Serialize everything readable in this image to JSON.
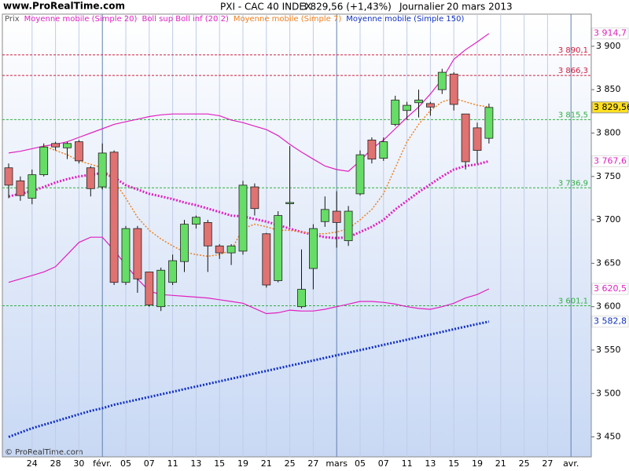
{
  "chart_data": {
    "type": "candlestick",
    "site": "www.ProRealTime.com",
    "copyright": "© ProRealTime.com",
    "title": "PXI - CAC 40 INDEX",
    "price_change": "3 829,56 (+1,43%)",
    "period": "Journalier",
    "date": "20 mars 2013",
    "price_name": "Prix",
    "categories": [
      null,
      null,
      "24",
      null,
      "28",
      null,
      "30",
      null,
      "févr.",
      null,
      "05",
      null,
      "07",
      null,
      "11",
      null,
      "13",
      null,
      "15",
      null,
      "19",
      null,
      "21",
      null,
      "25",
      null,
      "27",
      null,
      "mars",
      null,
      "05",
      null,
      "07",
      null,
      "11",
      null,
      "13",
      null,
      "15",
      null,
      "19",
      null,
      "21",
      null,
      "25",
      null,
      "27",
      null,
      "avr."
    ],
    "month_starts": [
      8,
      28,
      48
    ],
    "open": [
      3760,
      3745,
      3725,
      3752,
      3788,
      3783,
      3790,
      3760,
      3738,
      3778,
      3628,
      3690,
      3640,
      3600,
      3628,
      3652,
      3695,
      3697,
      3670,
      3662,
      3664,
      3738,
      3684,
      3630,
      3719,
      3600,
      3644,
      3698,
      3710,
      3676,
      3730,
      3792,
      3771,
      3810,
      3826,
      3835,
      3834,
      3850,
      3868,
      3822,
      3806,
      3794,
      null,
      null,
      null,
      null,
      null,
      null,
      null
    ],
    "high": [
      3765,
      3750,
      3758,
      3788,
      3790,
      3790,
      3792,
      3762,
      3788,
      3780,
      3693,
      3693,
      3640,
      3645,
      3660,
      3700,
      3705,
      3700,
      3672,
      3672,
      3745,
      3742,
      3685,
      3710,
      3785,
      3666,
      3695,
      3727,
      3733,
      3716,
      3780,
      3795,
      3795,
      3843,
      3836,
      3850,
      3836,
      3874,
      3870,
      3822,
      3812,
      3834,
      null,
      null,
      null,
      null,
      null,
      null,
      null
    ],
    "low": [
      3725,
      3722,
      3718,
      3750,
      3780,
      3770,
      3765,
      3727,
      3735,
      3625,
      3625,
      3616,
      3600,
      3595,
      3625,
      3640,
      3690,
      3640,
      3655,
      3648,
      3660,
      3705,
      3622,
      3628,
      3692,
      3598,
      3620,
      3692,
      3668,
      3670,
      3728,
      3765,
      3768,
      3808,
      3815,
      3818,
      3820,
      3845,
      3826,
      3758,
      3765,
      3788,
      null,
      null,
      null,
      null,
      null,
      null,
      null
    ],
    "close": [
      3740,
      3728,
      3752,
      3784,
      3784,
      3788,
      3768,
      3736,
      3777,
      3628,
      3690,
      3632,
      3602,
      3642,
      3653,
      3695,
      3703,
      3670,
      3662,
      3670,
      3740,
      3713,
      3625,
      3705,
      3720,
      3620,
      3690,
      3712,
      3697,
      3710,
      3775,
      3770,
      3790,
      3838,
      3832,
      3838,
      3830,
      3870,
      3833,
      3767,
      3780,
      3829.56,
      null,
      null,
      null,
      null,
      null,
      null,
      null
    ],
    "close_labels": [
      null,
      null,
      null,
      null,
      null,
      null,
      null,
      null,
      null,
      null,
      null,
      null,
      null,
      null,
      null,
      null,
      null,
      null,
      null,
      null,
      null,
      null,
      null,
      null,
      null,
      null,
      null,
      null,
      null,
      null,
      null,
      null,
      null,
      null,
      null,
      null,
      null,
      null,
      null,
      null,
      null,
      "3 829,56",
      null,
      null,
      null,
      null,
      null,
      null,
      null
    ],
    "up_color": "#66dd66",
    "down_color": "#e07272",
    "series": [
      {
        "name": "Moyenne mobile (Simple 20)",
        "color": "#e020c0",
        "style": "dotted-thick",
        "values": [
          3727,
          3730,
          3733,
          3738,
          3743,
          3747,
          3750,
          3752,
          3754,
          3749,
          3740,
          3735,
          3730,
          3727,
          3724,
          3720,
          3717,
          3713,
          3709,
          3705,
          3704,
          3701,
          3698,
          3694,
          3690,
          3686,
          3683,
          3680,
          3679,
          3680,
          3686,
          3692,
          3700,
          3712,
          3722,
          3732,
          3741,
          3750,
          3758,
          3762,
          3764,
          3767.6,
          null,
          null,
          null,
          null,
          null,
          null,
          null
        ],
        "value_labels": [
          null,
          null,
          null,
          null,
          null,
          null,
          null,
          null,
          null,
          null,
          null,
          null,
          null,
          null,
          null,
          null,
          null,
          null,
          null,
          null,
          null,
          null,
          null,
          null,
          null,
          null,
          null,
          null,
          null,
          null,
          null,
          null,
          null,
          null,
          null,
          null,
          null,
          null,
          null,
          null,
          null,
          "3 767,6",
          null,
          null,
          null,
          null,
          null,
          null,
          null
        ]
      },
      {
        "name": "Boll sup Boll inf (20 2)",
        "color": "#e020c0",
        "style": "solid",
        "values": [
          3777,
          3779,
          3782,
          3785,
          3787,
          3790,
          3795,
          3800,
          3805,
          3810,
          3813,
          3816,
          3819,
          3821,
          3822,
          3822,
          3822,
          3822,
          3820,
          3815,
          3812,
          3808,
          3804,
          3797,
          3787,
          3778,
          3770,
          3762,
          3758,
          3756,
          3768,
          3782,
          3792,
          3805,
          3818,
          3830,
          3845,
          3862,
          3885,
          3896,
          3905,
          3914.7,
          null,
          null,
          null,
          null,
          null,
          null,
          null
        ],
        "value_labels": [
          null,
          null,
          null,
          null,
          null,
          null,
          null,
          null,
          null,
          null,
          null,
          null,
          null,
          null,
          null,
          null,
          null,
          null,
          null,
          null,
          null,
          null,
          null,
          null,
          null,
          null,
          null,
          null,
          null,
          null,
          null,
          null,
          null,
          null,
          null,
          null,
          null,
          null,
          null,
          null,
          null,
          "3 914,7",
          null,
          null,
          null,
          null,
          null,
          null,
          null
        ],
        "lower": [
          3628,
          3632,
          3636,
          3640,
          3646,
          3660,
          3674,
          3680,
          3680,
          3665,
          3648,
          3632,
          3618,
          3614,
          3613,
          3612,
          3611,
          3610,
          3608,
          3606,
          3604,
          3598,
          3592,
          3593,
          3596,
          3595,
          3595,
          3597,
          3600,
          3603,
          3606,
          3606,
          3605,
          3603,
          3600,
          3598,
          3597,
          3600,
          3604,
          3610,
          3614,
          3620.5,
          null,
          null,
          null,
          null,
          null,
          null,
          null
        ],
        "lower_labels": [
          null,
          null,
          null,
          null,
          null,
          null,
          null,
          null,
          null,
          null,
          null,
          null,
          null,
          null,
          null,
          null,
          null,
          null,
          null,
          null,
          null,
          null,
          null,
          null,
          null,
          null,
          null,
          null,
          null,
          null,
          null,
          null,
          null,
          null,
          null,
          null,
          null,
          null,
          null,
          null,
          null,
          "3 620,5",
          null,
          null,
          null,
          null,
          null,
          null,
          null
        ]
      },
      {
        "name": "Moyenne mobile (Simple 7)",
        "color": "#f08020",
        "style": "dotted",
        "values": [
          null,
          null,
          null,
          3785,
          3780,
          3775,
          3768,
          3764,
          3760,
          3745,
          3725,
          3703,
          3688,
          3678,
          3670,
          3663,
          3660,
          3658,
          3660,
          3665,
          3690,
          3695,
          3692,
          3688,
          3688,
          3686,
          3684,
          3684,
          3686,
          3690,
          3700,
          3712,
          3730,
          3760,
          3790,
          3810,
          3826,
          3836,
          3840,
          3836,
          3832,
          3830,
          null,
          null,
          null,
          null,
          null,
          null,
          null
        ]
      },
      {
        "name": "Moyenne mobile (Simple 150)",
        "color": "#1030c0",
        "style": "dotted-thick",
        "values": [
          3450,
          3455,
          3460,
          3464,
          3468,
          3472,
          3476,
          3480,
          3483,
          3487,
          3490,
          3493,
          3496,
          3499,
          3502,
          3505,
          3508,
          3511,
          3514,
          3517,
          3520,
          3523,
          3526,
          3529,
          3532,
          3535,
          3538,
          3541,
          3544,
          3547,
          3550,
          3553,
          3556,
          3559,
          3562,
          3565,
          3568,
          3571,
          3574,
          3577,
          3580,
          3582.8,
          null,
          null,
          null,
          null,
          null,
          null,
          null
        ],
        "value_labels": [
          null,
          null,
          null,
          null,
          null,
          null,
          null,
          null,
          null,
          null,
          null,
          null,
          null,
          null,
          null,
          null,
          null,
          null,
          null,
          null,
          null,
          null,
          null,
          null,
          null,
          null,
          null,
          null,
          null,
          null,
          null,
          null,
          null,
          null,
          null,
          null,
          null,
          null,
          null,
          null,
          null,
          "3 582,8",
          null,
          null,
          null,
          null,
          null,
          null,
          null
        ]
      }
    ],
    "levels": [
      {
        "value": 3890.1,
        "label": "3 890,1",
        "color": "#d02040"
      },
      {
        "value": 3866.3,
        "label": "3 866,3",
        "color": "#d02040"
      },
      {
        "value": 3815.5,
        "label": "3 815,5",
        "color": "#30b040"
      },
      {
        "value": 3736.9,
        "label": "3 736,9",
        "color": "#30b040"
      },
      {
        "value": 3601.1,
        "label": "3 601,1",
        "color": "#30b040"
      }
    ],
    "ylim": [
      3427,
      3937
    ],
    "yticks": [
      {
        "value": 3450,
        "label": "3 450"
      },
      {
        "value": 3500,
        "label": "3 500"
      },
      {
        "value": 3550,
        "label": "3 550"
      },
      {
        "value": 3600,
        "label": "3 600"
      },
      {
        "value": 3650,
        "label": "3 650"
      },
      {
        "value": 3700,
        "label": "3 700"
      },
      {
        "value": 3750,
        "label": "3 750"
      },
      {
        "value": 3800,
        "label": "3 800"
      },
      {
        "value": 3850,
        "label": "3 850"
      },
      {
        "value": 3900,
        "label": "3 900"
      }
    ]
  }
}
